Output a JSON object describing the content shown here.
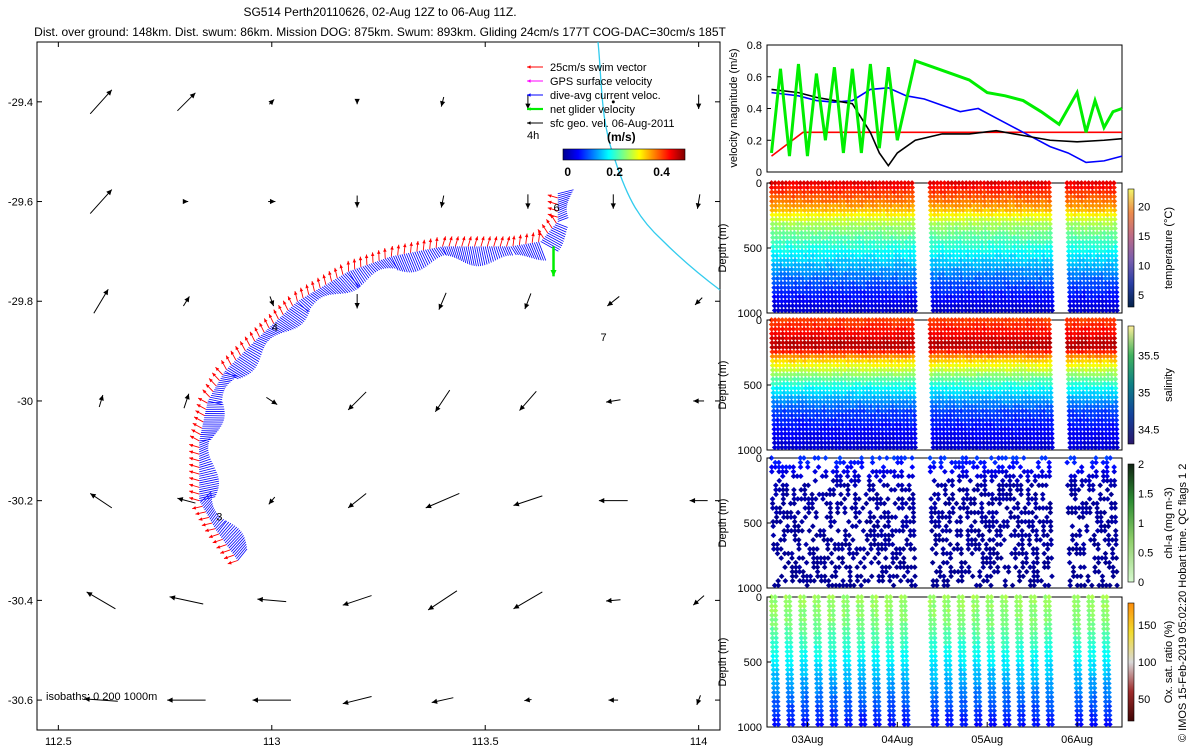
{
  "header": {
    "title": "SG514 Perth20110626, 02-Aug 12Z to 06-Aug 11Z.",
    "stats": "Dist. over ground: 148km. Dist. swum: 86km. Mission DOG: 875km. Swum: 893km. Gliding 24cm/s 177T COG-DAC=30cm/s 185T"
  },
  "credit": "© IMOS 15-Feb-2019 05:02:20 Hobart time. QC flags 1  2",
  "chart_data": [
    {
      "type": "scatter",
      "id": "map",
      "xlim": [
        112.45,
        114.05
      ],
      "ylim": [
        -30.66,
        -29.28
      ],
      "xticks": [
        "112.5",
        "113",
        "113.5",
        "114"
      ],
      "yticks": [
        "-29.4",
        "-29.6",
        "-29.8",
        "-30",
        "-30.2",
        "-30.4",
        "-30.6"
      ],
      "legend": {
        "items": [
          {
            "label": "25cm/s swim vector",
            "color": "#ff0000"
          },
          {
            "label": "GPS surface velocity",
            "color": "#ff00ff"
          },
          {
            "label": "dive-avg current veloc.",
            "color": "#0000ff"
          },
          {
            "label": "net glider velocity",
            "color": "#00ee00"
          },
          {
            "label": "sfc geo. vel. 06-Aug-2011",
            "color": "#000000"
          }
        ],
        "placement": "top-right"
      },
      "time_label": "4h",
      "colorbar": {
        "label": "(m/s)",
        "ticks": [
          "0",
          "0.2",
          "0.4"
        ],
        "range": [
          -0.02,
          0.5
        ]
      },
      "isobath_label": "isobaths: 0   200  1000m",
      "day_labels": [
        {
          "text": "3",
          "lon": 112.87,
          "lat": -30.24
        },
        {
          "text": "4",
          "lon": 113.0,
          "lat": -29.86
        },
        {
          "text": "6",
          "lon": 113.66,
          "lat": -29.62
        },
        {
          "text": "7",
          "lon": 113.77,
          "lat": -29.88
        }
      ],
      "track": [
        [
          112.92,
          -30.32
        ],
        [
          112.87,
          -30.26
        ],
        [
          112.83,
          -30.2
        ],
        [
          112.83,
          -30.08
        ],
        [
          112.85,
          -30.0
        ],
        [
          112.89,
          -29.94
        ],
        [
          112.96,
          -29.88
        ],
        [
          113.06,
          -29.8
        ],
        [
          113.18,
          -29.74
        ],
        [
          113.28,
          -29.71
        ],
        [
          113.34,
          -29.7
        ],
        [
          113.4,
          -29.69
        ],
        [
          113.48,
          -29.69
        ],
        [
          113.56,
          -29.69
        ],
        [
          113.63,
          -29.68
        ],
        [
          113.67,
          -29.64
        ],
        [
          113.67,
          -29.58
        ]
      ],
      "surface_velocity_grid": {
        "lons": [
          112.6,
          112.8,
          113.0,
          113.2,
          113.4,
          113.6,
          113.8,
          114.0
        ],
        "lats": [
          -29.4,
          -29.6,
          -29.8,
          -30.0,
          -30.2,
          -30.4,
          -30.6
        ],
        "u": [
          [
            0.18,
            0.15,
            0.04,
            0.0,
            -0.02,
            0.0,
            0.0,
            0.0
          ],
          [
            0.18,
            0.03,
            0.06,
            0.0,
            -0.02,
            0.0,
            0.0,
            -0.02
          ],
          [
            0.12,
            0.05,
            0.03,
            0.0,
            -0.06,
            -0.05,
            -0.1,
            -0.06
          ],
          [
            0.03,
            0.04,
            0.09,
            -0.15,
            -0.12,
            -0.14,
            -0.12,
            -0.09
          ],
          [
            -0.18,
            -0.15,
            -0.05,
            -0.15,
            -0.28,
            -0.24,
            -0.24,
            -0.15
          ],
          [
            -0.24,
            -0.28,
            -0.24,
            -0.24,
            -0.24,
            -0.24,
            -0.12,
            -0.09
          ],
          [
            -0.28,
            -0.32,
            -0.32,
            -0.24,
            -0.18,
            -0.06,
            -0.08,
            -0.03
          ]
        ],
        "v": [
          [
            0.2,
            0.15,
            0.04,
            -0.04,
            -0.08,
            -0.12,
            0.0,
            -0.12
          ],
          [
            0.2,
            0.0,
            0.0,
            -0.1,
            -0.1,
            -0.12,
            -0.12,
            -0.12
          ],
          [
            0.2,
            0.08,
            -0.08,
            -0.12,
            -0.14,
            -0.13,
            -0.08,
            -0.06
          ],
          [
            0.1,
            0.12,
            -0.06,
            -0.15,
            -0.18,
            -0.16,
            -0.02,
            0.0
          ],
          [
            0.12,
            0.04,
            -0.06,
            -0.12,
            -0.12,
            -0.08,
            0.0,
            0.0
          ],
          [
            0.14,
            0.06,
            0.02,
            -0.08,
            -0.16,
            -0.14,
            -0.01,
            -0.08
          ],
          [
            0.02,
            0.0,
            0.0,
            -0.06,
            -0.04,
            -0.01,
            0.0,
            -0.08
          ]
        ]
      }
    },
    {
      "type": "line",
      "id": "velocity",
      "ylabel": "velocity magnitude (m/s)",
      "ylim": [
        0,
        0.8
      ],
      "yticks": [
        "0",
        "0.2",
        "0.4",
        "0.6",
        "0.8"
      ],
      "xlim": [
        2.55,
        6.5
      ],
      "series": [
        {
          "color": "#ff0000",
          "x": [
            2.6,
            2.95,
            6.5
          ],
          "y": [
            0.1,
            0.25,
            0.25
          ]
        },
        {
          "color": "#0000ff",
          "x": [
            2.6,
            2.9,
            3.1,
            3.3,
            3.5,
            3.7,
            3.9,
            4.1,
            4.3,
            4.5,
            4.7,
            4.9,
            5.1,
            5.3,
            5.5,
            5.7,
            5.9,
            6.1,
            6.3,
            6.5
          ],
          "y": [
            0.5,
            0.48,
            0.45,
            0.44,
            0.45,
            0.52,
            0.53,
            0.48,
            0.46,
            0.42,
            0.38,
            0.4,
            0.34,
            0.28,
            0.22,
            0.16,
            0.12,
            0.06,
            0.07,
            0.1
          ]
        },
        {
          "color": "#000000",
          "x": [
            2.6,
            2.9,
            3.1,
            3.3,
            3.5,
            3.7,
            3.8,
            3.9,
            4.0,
            4.2,
            4.5,
            4.8,
            5.1,
            5.4,
            5.7,
            6.0,
            6.3,
            6.5
          ],
          "y": [
            0.52,
            0.5,
            0.47,
            0.45,
            0.43,
            0.25,
            0.12,
            0.04,
            0.12,
            0.2,
            0.24,
            0.24,
            0.26,
            0.23,
            0.2,
            0.19,
            0.2,
            0.21
          ]
        },
        {
          "color": "#00ee00",
          "x": [
            2.6,
            2.7,
            2.8,
            2.9,
            3.0,
            3.1,
            3.2,
            3.3,
            3.4,
            3.5,
            3.6,
            3.7,
            3.8,
            3.9,
            4.0,
            4.2,
            4.4,
            4.6,
            4.8,
            5.0,
            5.2,
            5.4,
            5.6,
            5.8,
            6.0,
            6.1,
            6.2,
            6.3,
            6.4,
            6.5
          ],
          "y": [
            0.12,
            0.65,
            0.1,
            0.68,
            0.1,
            0.62,
            0.2,
            0.66,
            0.12,
            0.65,
            0.12,
            0.68,
            0.15,
            0.66,
            0.2,
            0.7,
            0.66,
            0.62,
            0.58,
            0.5,
            0.48,
            0.45,
            0.38,
            0.3,
            0.5,
            0.25,
            0.45,
            0.28,
            0.38,
            0.4
          ]
        }
      ]
    },
    {
      "type": "scatter",
      "id": "temperature",
      "ylabel": "Depth (m)",
      "colorbar_label": "temperature (°C)",
      "ylim": [
        1000,
        0
      ],
      "yticks": [
        "0",
        "500",
        "1000"
      ],
      "clim": [
        3,
        23
      ],
      "cticks": [
        {
          "v": 5,
          "t": "5"
        },
        {
          "v": 10,
          "t": "10"
        },
        {
          "v": 15,
          "t": "15"
        },
        {
          "v": 20,
          "t": "20"
        }
      ],
      "profile": [
        [
          0,
          21
        ],
        [
          100,
          19
        ],
        [
          200,
          17
        ],
        [
          300,
          14
        ],
        [
          500,
          11
        ],
        [
          700,
          8
        ],
        [
          1000,
          4
        ]
      ]
    },
    {
      "type": "scatter",
      "id": "salinity",
      "ylabel": "Depth (m)",
      "colorbar_label": "salinity",
      "ylim": [
        1000,
        0
      ],
      "yticks": [
        "0",
        "500",
        "1000"
      ],
      "clim": [
        34.3,
        35.9
      ],
      "cticks": [
        {
          "v": 34.5,
          "t": "34.5"
        },
        {
          "v": 35,
          "t": "35"
        },
        {
          "v": 35.5,
          "t": "35.5"
        }
      ],
      "profile": [
        [
          0,
          35.6
        ],
        [
          100,
          35.7
        ],
        [
          200,
          35.85
        ],
        [
          300,
          35.4
        ],
        [
          500,
          34.95
        ],
        [
          700,
          34.6
        ],
        [
          1000,
          34.4
        ]
      ]
    },
    {
      "type": "scatter",
      "id": "chla",
      "ylabel": "Depth (m)",
      "colorbar_label": "chl-a (mg m-3)",
      "ylim": [
        1000,
        0
      ],
      "yticks": [
        "0",
        "500",
        "1000"
      ],
      "clim": [
        0,
        2
      ],
      "cticks": [
        {
          "v": 0,
          "t": "0"
        },
        {
          "v": 0.5,
          "t": "0.5"
        },
        {
          "v": 1,
          "t": "1"
        },
        {
          "v": 1.5,
          "t": "1.5"
        },
        {
          "v": 2,
          "t": "2"
        }
      ],
      "profile": [
        [
          0,
          0.35
        ],
        [
          100,
          0.2
        ],
        [
          200,
          0.05
        ],
        [
          1000,
          0.0
        ]
      ]
    },
    {
      "type": "scatter",
      "id": "oxygen",
      "ylabel": "Depth (m)",
      "colorbar_label": "Ox. sat. ratio (%)",
      "ylim": [
        1000,
        0
      ],
      "yticks": [
        "0",
        "500",
        "1000"
      ],
      "clim": [
        20,
        180
      ],
      "cticks": [
        {
          "v": 50,
          "t": "50"
        },
        {
          "v": 100,
          "t": "100"
        },
        {
          "v": 150,
          "t": "150"
        }
      ],
      "profile": [
        [
          0,
          105
        ],
        [
          200,
          100
        ],
        [
          400,
          85
        ],
        [
          600,
          70
        ],
        [
          800,
          55
        ],
        [
          1000,
          40
        ]
      ]
    }
  ],
  "time_axis": {
    "xlim": [
      2.55,
      6.5
    ],
    "ticks": [
      {
        "v": 3,
        "t": "03Aug"
      },
      {
        "v": 4,
        "t": "04Aug"
      },
      {
        "v": 5,
        "t": "05Aug"
      },
      {
        "v": 6,
        "t": "06Aug"
      }
    ],
    "gaps": [
      [
        4.18,
        4.35
      ],
      [
        5.72,
        5.83
      ]
    ]
  }
}
